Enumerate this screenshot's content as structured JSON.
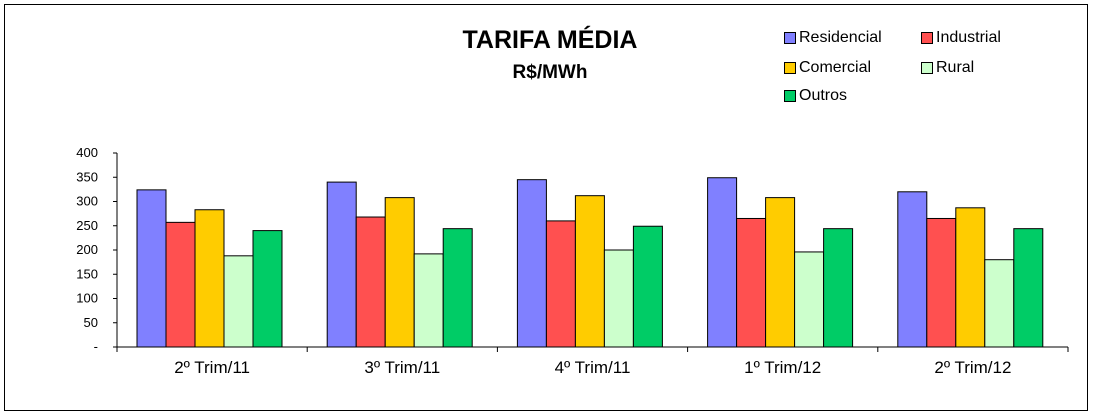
{
  "chart_data": {
    "type": "bar",
    "title": "TARIFA MÉDIA",
    "subtitle": "R$/MWh",
    "categories": [
      "2º Trim/11",
      "3º Trim/11",
      "4º Trim/11",
      "1º Trim/12",
      "2º Trim/12"
    ],
    "series": [
      {
        "name": "Residencial",
        "color": "#8080ff",
        "values": [
          324,
          340,
          345,
          349,
          320
        ]
      },
      {
        "name": "Industrial",
        "color": "#ff5050",
        "values": [
          257,
          268,
          260,
          265,
          265
        ]
      },
      {
        "name": "Comercial",
        "color": "#ffcc00",
        "values": [
          283,
          308,
          312,
          308,
          287
        ]
      },
      {
        "name": "Rural",
        "color": "#ccffcc",
        "values": [
          188,
          192,
          200,
          196,
          180
        ]
      },
      {
        "name": "Outros",
        "color": "#00cc66",
        "values": [
          240,
          244,
          249,
          244,
          244
        ]
      }
    ],
    "yticks": [
      "-",
      "50",
      "100",
      "150",
      "200",
      "250",
      "300",
      "350",
      "400"
    ],
    "ylim": [
      0,
      400
    ],
    "grid": false,
    "legend_position": "top-right"
  }
}
